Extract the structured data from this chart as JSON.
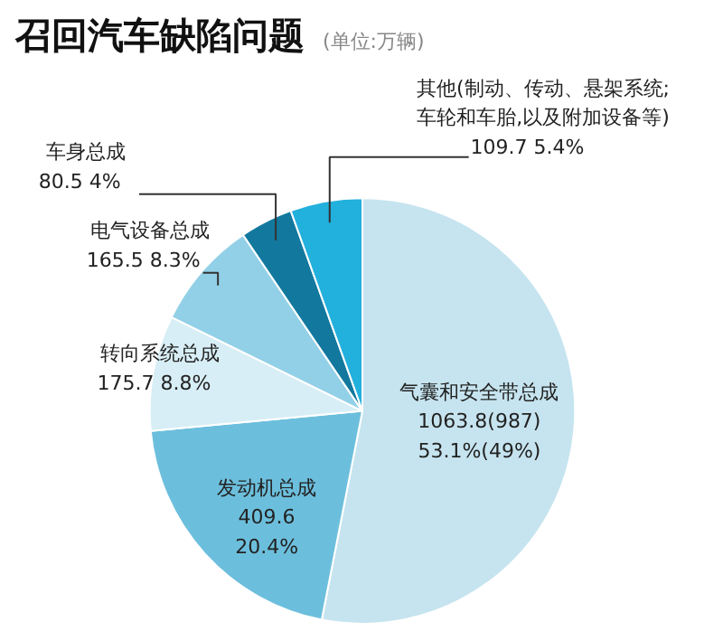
{
  "chart_data": {
    "type": "pie",
    "title": "召回汽车缺陷问题",
    "subtitle": "(单位:万辆)",
    "categories": [
      "气囊和安全带总成",
      "发动机总成",
      "转向系统总成",
      "电气设备总成",
      "车身总成",
      "其他(制动、传动、悬架系统;\n车轮和车胎,以及附加设备等)"
    ],
    "values": [
      1063.8,
      409.6,
      175.7,
      165.5,
      80.5,
      109.7
    ],
    "colors": [
      "#c6e4ef",
      "#6cbfdc",
      "#d8eef6",
      "#92d0e7",
      "#12789e",
      "#22b0dc"
    ],
    "value_labels": [
      "1063.8(987)\n53.1%(49%)",
      "409.6\n20.4%",
      "175.7   8.8%",
      "165.5   8.3%",
      "80.5   4%",
      "109.7      5.4%"
    ]
  }
}
